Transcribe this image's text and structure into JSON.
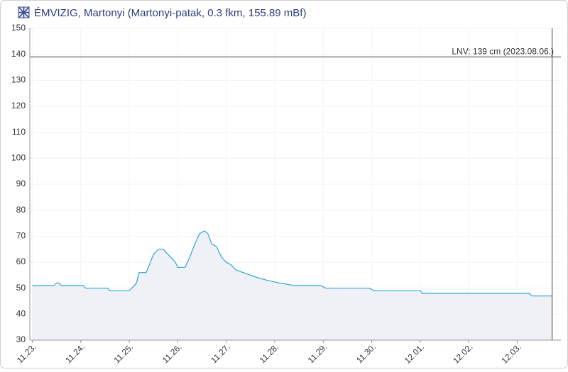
{
  "chart_data": {
    "type": "area",
    "title": "ÉMVIZIG, Martonyi (Martonyi-patak, 0.3 fkm, 155.89 mBf)",
    "series": [
      {
        "color": "#2aa6d8",
        "x": [
          0,
          0.45,
          0.5,
          0.55,
          0.6,
          1.05,
          1.1,
          1.55,
          1.6,
          2.0,
          2.05,
          2.15,
          2.2,
          2.35,
          2.5,
          2.6,
          2.7,
          2.85,
          2.95,
          3.0,
          3.15,
          3.25,
          3.35,
          3.45,
          3.55,
          3.62,
          3.7,
          3.8,
          3.9,
          4.0,
          4.1,
          4.2,
          4.35,
          4.5,
          4.65,
          4.85,
          5.1,
          5.4,
          5.95,
          6.05,
          6.95,
          7.05,
          8.0,
          8.05,
          10.25,
          10.3,
          10.72
        ],
        "values": [
          51,
          51,
          52,
          52,
          51,
          51,
          50,
          50,
          49,
          49,
          50,
          52,
          56,
          56,
          63,
          65,
          65,
          62,
          60,
          58,
          58,
          62,
          67,
          71,
          72,
          71,
          67,
          66,
          62,
          60,
          59,
          57,
          56,
          55,
          54,
          53,
          52,
          51,
          51,
          50,
          50,
          49,
          49,
          48,
          48,
          47,
          47
        ]
      }
    ],
    "xlim": [
      -0.05,
      10.9
    ],
    "xticks": [
      {
        "value": 0,
        "label": "11.23."
      },
      {
        "value": 1,
        "label": "11.24."
      },
      {
        "value": 2,
        "label": "11.25."
      },
      {
        "value": 3,
        "label": "11.26."
      },
      {
        "value": 4,
        "label": "11.27."
      },
      {
        "value": 5,
        "label": "11.28."
      },
      {
        "value": 6,
        "label": "11.29."
      },
      {
        "value": 7,
        "label": "11.30."
      },
      {
        "value": 8,
        "label": "12.01."
      },
      {
        "value": 9,
        "label": "12.02."
      },
      {
        "value": 10,
        "label": "12.03."
      }
    ],
    "ylim": [
      30,
      150
    ],
    "yticks": [
      30,
      40,
      50,
      60,
      70,
      80,
      90,
      100,
      110,
      120,
      130,
      140,
      150
    ],
    "reference_lines": [
      {
        "value": 139,
        "label": "LNV: 139 cm (2023.08.06.)"
      }
    ],
    "grid": true
  }
}
